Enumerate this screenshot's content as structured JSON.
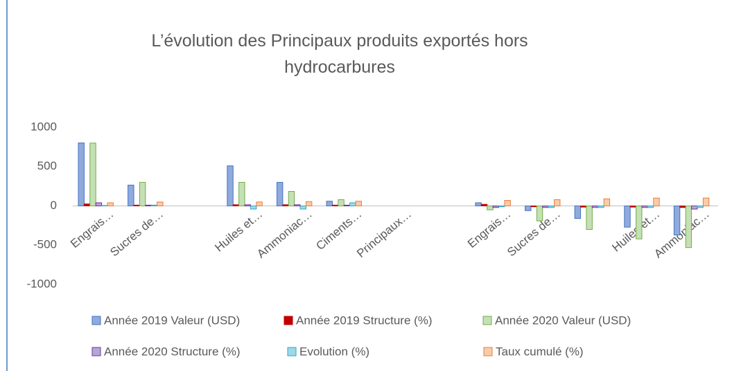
{
  "chart_data": {
    "type": "bar",
    "title": "L’évolution des Principaux produits exportés hors hydrocarbures",
    "categories": [
      "Engrais…",
      "Sucres de…",
      null,
      "Huiles et…",
      "Ammoniac…",
      "Ciments…",
      "Principaux…",
      null,
      "Engrais…",
      "Sucres de…",
      null,
      "Huiles et…",
      "Ammoniac…"
    ],
    "series": [
      {
        "name": "Année 2019 Valeur (USD)",
        "color": "#8faadc",
        "stroke": "#4472c4",
        "values": [
          802,
          265,
          null,
          510,
          300,
          60,
          null,
          null,
          40,
          -60,
          -160,
          -270,
          -370
        ]
      },
      {
        "name": "Année 2019 Structure (%)",
        "color": "#c00000",
        "stroke": "#c00000",
        "values": [
          25,
          10,
          null,
          15,
          15,
          10,
          null,
          null,
          20,
          -10,
          -15,
          -15,
          -20
        ]
      },
      {
        "name": "Année 2020 Valeur (USD)",
        "color": "#c5e0b4",
        "stroke": "#70ad47",
        "values": [
          800,
          300,
          null,
          300,
          185,
          80,
          null,
          null,
          -50,
          -190,
          -300,
          -420,
          -530
        ]
      },
      {
        "name": "Année 2020 Structure (%)",
        "color": "#b4a7d6",
        "stroke": "#7030a0",
        "values": [
          40,
          10,
          null,
          15,
          15,
          10,
          null,
          null,
          -20,
          -20,
          -20,
          -20,
          -40
        ]
      },
      {
        "name": "Evolution (%)",
        "color": "#9dd9ea",
        "stroke": "#31a5c5",
        "values": [
          5,
          10,
          null,
          -40,
          -40,
          40,
          null,
          null,
          -10,
          -20,
          -20,
          -20,
          -20
        ]
      },
      {
        "name": "Taux cumulé (%)",
        "color": "#f8cbad",
        "stroke": "#ed7d31",
        "values": [
          40,
          50,
          null,
          50,
          55,
          60,
          null,
          null,
          70,
          80,
          90,
          100,
          100
        ]
      }
    ],
    "ylim": [
      -1000,
      1000
    ],
    "yticks": [
      -1000,
      -500,
      0,
      500,
      1000
    ],
    "grid": false
  }
}
